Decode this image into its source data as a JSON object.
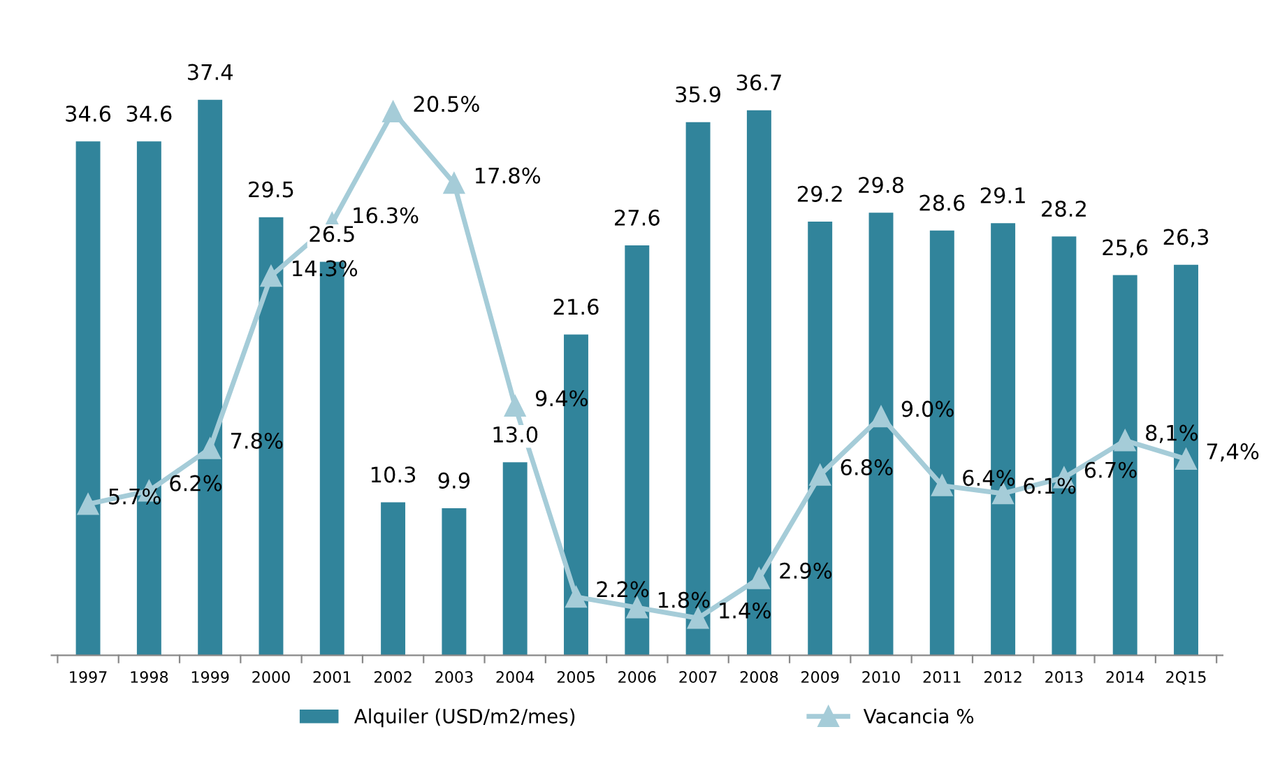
{
  "chart_data": {
    "type": "bar",
    "categories": [
      "1997",
      "1998",
      "1999",
      "2000",
      "2001",
      "2002",
      "2003",
      "2004",
      "2005",
      "2006",
      "2007",
      "2008",
      "2009",
      "2010",
      "2011",
      "2012",
      "2013",
      "2014",
      "2Q15"
    ],
    "series": [
      {
        "name": "Alquiler (USD/m2/mes)",
        "color": "#31849b",
        "values": [
          34.6,
          34.6,
          37.4,
          29.5,
          26.5,
          10.3,
          9.9,
          13.0,
          21.6,
          27.6,
          35.9,
          36.7,
          29.2,
          29.8,
          28.6,
          29.1,
          28.2,
          25.6,
          26.3
        ],
        "value_labels": [
          "34.6",
          "34.6",
          "37.4",
          "29.5",
          "26.5",
          "10.3",
          "9.9",
          "13.0",
          "21.6",
          "27.6",
          "35.9",
          "36.7",
          "29.2",
          "29.8",
          "28.6",
          "29.1",
          "28.2",
          "25,6",
          "26,3"
        ]
      },
      {
        "name": "Vacancia %",
        "type": "line",
        "axis": "y2",
        "color": "#a5ccd8",
        "marker": "triangle",
        "values": [
          5.7,
          6.2,
          7.8,
          14.3,
          16.3,
          20.5,
          17.8,
          9.4,
          2.2,
          1.8,
          1.4,
          2.9,
          6.8,
          9.0,
          6.4,
          6.1,
          6.7,
          8.1,
          7.4
        ],
        "value_labels": [
          "5.7%",
          "6.2%",
          "7.8%",
          "14.3%",
          "16.3%",
          "20.5%",
          "17.8%",
          "9.4%",
          "2.2%",
          "1.8%",
          "1.4%",
          "2.9%",
          "6.8%",
          "9.0%",
          "6.4%",
          "6.1%",
          "6.7%",
          "8,1%",
          "7,4%"
        ]
      }
    ],
    "tick_labels": "x",
    "legend": "bottom"
  }
}
